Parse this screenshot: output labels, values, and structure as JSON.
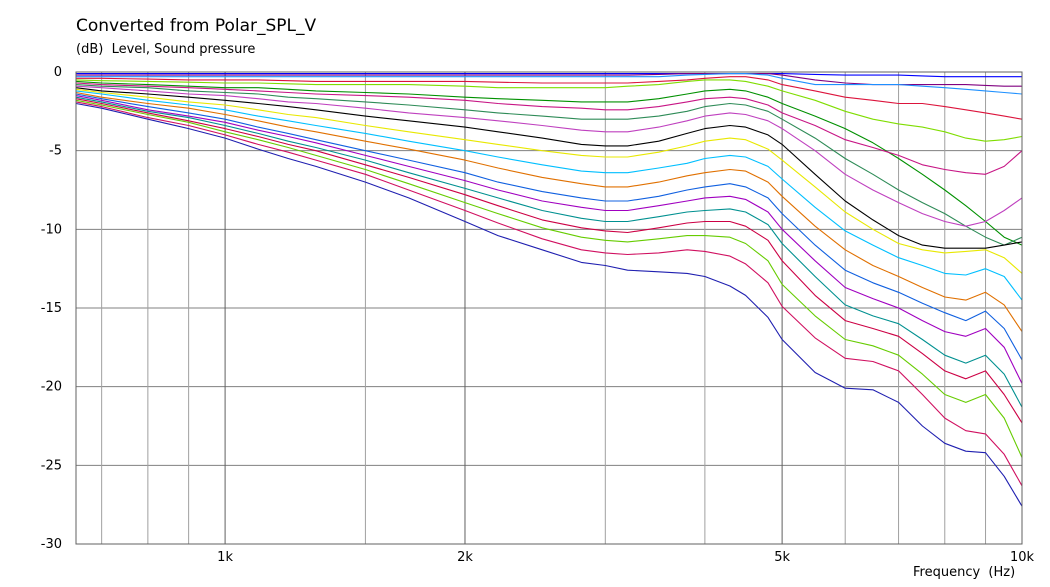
{
  "chart_data": {
    "type": "line",
    "title": "Converted from Polar_SPL_V",
    "ylabel": "(dB)  Level, Sound pressure",
    "xlabel": "Frequency  (Hz)",
    "x_scale": "log",
    "xlim": [
      650,
      10000
    ],
    "ylim": [
      -30,
      0
    ],
    "grid": true,
    "legend": "none",
    "y_ticks": [
      0,
      -5,
      -10,
      -15,
      -20,
      -25,
      -30
    ],
    "y_tick_labels": [
      "0",
      "-5",
      "-10",
      "-15",
      "-20",
      "-25",
      "-30"
    ],
    "x_ticks": [
      1000,
      2000,
      5000,
      10000
    ],
    "x_tick_labels": [
      "1k",
      "2k",
      "5k",
      "10k"
    ],
    "x_minor_grid": [
      700,
      800,
      900,
      1500,
      3000,
      4000,
      6000,
      7000,
      8000,
      9000
    ],
    "x": [
      650,
      700,
      800,
      900,
      1000,
      1100,
      1200,
      1300,
      1500,
      1700,
      2000,
      2200,
      2500,
      2800,
      3000,
      3200,
      3500,
      3800,
      4000,
      4300,
      4500,
      4800,
      5000,
      5500,
      6000,
      6500,
      7000,
      7500,
      8000,
      8500,
      9000,
      9500,
      10000
    ],
    "series": [
      {
        "color": "#ff8c00",
        "values": [
          0.0,
          0.0,
          0.0,
          0.0,
          0.0,
          0.0,
          0.0,
          0.0,
          0.0,
          0.0,
          0.0,
          0.0,
          0.0,
          0.0,
          0.0,
          0.0,
          0.0,
          0.0,
          0.0,
          0.0,
          0.0,
          0.0,
          0.0,
          0.0,
          0.0,
          0.0,
          0.0,
          0.0,
          0.0,
          0.0,
          0.0,
          0.0,
          0.0
        ]
      },
      {
        "color": "#0000ff",
        "values": [
          -0.1,
          -0.1,
          -0.1,
          -0.1,
          -0.1,
          -0.1,
          -0.1,
          -0.1,
          -0.1,
          -0.1,
          -0.1,
          -0.1,
          -0.1,
          -0.1,
          -0.1,
          -0.1,
          -0.1,
          -0.1,
          -0.1,
          -0.1,
          -0.1,
          -0.1,
          -0.1,
          -0.15,
          -0.2,
          -0.2,
          -0.2,
          -0.25,
          -0.3,
          -0.3,
          -0.3,
          -0.3,
          -0.3
        ]
      },
      {
        "color": "#800080",
        "values": [
          -0.2,
          -0.2,
          -0.2,
          -0.2,
          -0.2,
          -0.2,
          -0.2,
          -0.2,
          -0.2,
          -0.2,
          -0.2,
          -0.2,
          -0.2,
          -0.2,
          -0.2,
          -0.2,
          -0.15,
          -0.1,
          -0.1,
          -0.1,
          -0.1,
          -0.1,
          -0.2,
          -0.5,
          -0.7,
          -0.8,
          -0.8,
          -0.8,
          -0.8,
          -0.8,
          -0.85,
          -0.9,
          -0.9
        ]
      },
      {
        "color": "#1e90ff",
        "values": [
          -0.3,
          -0.3,
          -0.3,
          -0.3,
          -0.3,
          -0.3,
          -0.3,
          -0.3,
          -0.3,
          -0.3,
          -0.3,
          -0.3,
          -0.3,
          -0.3,
          -0.3,
          -0.3,
          -0.3,
          -0.2,
          -0.15,
          -0.1,
          -0.1,
          -0.2,
          -0.4,
          -0.8,
          -0.8,
          -0.8,
          -0.8,
          -0.9,
          -1.0,
          -1.1,
          -1.2,
          -1.3,
          -1.4
        ]
      },
      {
        "color": "#dc143c",
        "values": [
          -0.4,
          -0.4,
          -0.45,
          -0.5,
          -0.5,
          -0.5,
          -0.55,
          -0.6,
          -0.6,
          -0.6,
          -0.6,
          -0.65,
          -0.7,
          -0.7,
          -0.7,
          -0.7,
          -0.6,
          -0.5,
          -0.4,
          -0.3,
          -0.3,
          -0.5,
          -0.8,
          -1.2,
          -1.6,
          -1.8,
          -2.0,
          -2.0,
          -2.2,
          -2.4,
          -2.6,
          -2.8,
          -3.0
        ]
      },
      {
        "color": "#7fdd00",
        "values": [
          -0.5,
          -0.55,
          -0.6,
          -0.65,
          -0.7,
          -0.7,
          -0.75,
          -0.8,
          -0.8,
          -0.8,
          -0.9,
          -1.0,
          -1.0,
          -1.0,
          -1.0,
          -0.9,
          -0.8,
          -0.6,
          -0.5,
          -0.5,
          -0.6,
          -0.9,
          -1.2,
          -1.8,
          -2.5,
          -3.0,
          -3.3,
          -3.5,
          -3.8,
          -4.2,
          -4.4,
          -4.3,
          -4.1
        ]
      },
      {
        "color": "#009000",
        "values": [
          -0.6,
          -0.7,
          -0.8,
          -0.9,
          -1.0,
          -1.0,
          -1.1,
          -1.2,
          -1.3,
          -1.4,
          -1.6,
          -1.7,
          -1.8,
          -1.9,
          -1.9,
          -1.9,
          -1.7,
          -1.4,
          -1.2,
          -1.1,
          -1.2,
          -1.6,
          -2.0,
          -2.8,
          -3.6,
          -4.5,
          -5.5,
          -6.5,
          -7.5,
          -8.5,
          -9.5,
          -10.5,
          -11.0
        ]
      },
      {
        "color": "#c71585",
        "values": [
          -0.7,
          -0.8,
          -0.9,
          -1.0,
          -1.1,
          -1.2,
          -1.3,
          -1.4,
          -1.5,
          -1.6,
          -1.8,
          -2.0,
          -2.2,
          -2.3,
          -2.4,
          -2.4,
          -2.2,
          -1.9,
          -1.7,
          -1.6,
          -1.7,
          -2.1,
          -2.6,
          -3.4,
          -4.3,
          -4.8,
          -5.3,
          -5.9,
          -6.2,
          -6.4,
          -6.5,
          -6.0,
          -5.0
        ]
      },
      {
        "color": "#2e8b57",
        "values": [
          -0.8,
          -0.9,
          -1.0,
          -1.2,
          -1.3,
          -1.4,
          -1.6,
          -1.7,
          -1.9,
          -2.1,
          -2.4,
          -2.6,
          -2.8,
          -3.0,
          -3.0,
          -3.0,
          -2.8,
          -2.5,
          -2.2,
          -2.0,
          -2.1,
          -2.5,
          -3.0,
          -4.2,
          -5.5,
          -6.5,
          -7.5,
          -8.3,
          -9.0,
          -9.8,
          -10.5,
          -11.0,
          -10.5
        ]
      },
      {
        "color": "#bf40bf",
        "values": [
          -0.9,
          -1.0,
          -1.2,
          -1.4,
          -1.5,
          -1.7,
          -1.9,
          -2.0,
          -2.3,
          -2.6,
          -2.9,
          -3.1,
          -3.4,
          -3.7,
          -3.8,
          -3.8,
          -3.5,
          -3.1,
          -2.8,
          -2.6,
          -2.7,
          -3.1,
          -3.6,
          -5.0,
          -6.5,
          -7.5,
          -8.3,
          -9.0,
          -9.5,
          -9.8,
          -9.5,
          -8.8,
          -8.0
        ]
      },
      {
        "color": "#000000",
        "values": [
          -1.0,
          -1.2,
          -1.4,
          -1.6,
          -1.8,
          -2.0,
          -2.2,
          -2.4,
          -2.8,
          -3.1,
          -3.5,
          -3.8,
          -4.2,
          -4.6,
          -4.7,
          -4.7,
          -4.4,
          -3.9,
          -3.6,
          -3.4,
          -3.5,
          -4.0,
          -4.6,
          -6.5,
          -8.2,
          -9.4,
          -10.4,
          -11.0,
          -11.2,
          -11.2,
          -11.2,
          -11.0,
          -10.8
        ]
      },
      {
        "color": "#e8e800",
        "values": [
          -1.1,
          -1.3,
          -1.6,
          -1.9,
          -2.1,
          -2.4,
          -2.7,
          -2.9,
          -3.4,
          -3.8,
          -4.3,
          -4.6,
          -5.0,
          -5.3,
          -5.4,
          -5.4,
          -5.1,
          -4.7,
          -4.4,
          -4.2,
          -4.3,
          -4.9,
          -5.6,
          -7.3,
          -8.9,
          -10.0,
          -10.9,
          -11.3,
          -11.5,
          -11.4,
          -11.3,
          -11.8,
          -12.8
        ]
      },
      {
        "color": "#00bfff",
        "values": [
          -1.2,
          -1.4,
          -1.8,
          -2.1,
          -2.4,
          -2.8,
          -3.1,
          -3.4,
          -3.9,
          -4.4,
          -5.0,
          -5.4,
          -5.9,
          -6.3,
          -6.4,
          -6.4,
          -6.1,
          -5.8,
          -5.5,
          -5.3,
          -5.4,
          -6.0,
          -6.8,
          -8.6,
          -10.1,
          -11.0,
          -11.8,
          -12.3,
          -12.8,
          -12.9,
          -12.5,
          -13.0,
          -14.5
        ]
      },
      {
        "color": "#e07000",
        "values": [
          -1.3,
          -1.6,
          -2.0,
          -2.3,
          -2.7,
          -3.1,
          -3.5,
          -3.8,
          -4.4,
          -4.9,
          -5.6,
          -6.1,
          -6.7,
          -7.1,
          -7.3,
          -7.3,
          -7.0,
          -6.6,
          -6.4,
          -6.2,
          -6.3,
          -7.0,
          -7.9,
          -9.8,
          -11.3,
          -12.3,
          -13.0,
          -13.7,
          -14.3,
          -14.5,
          -14.0,
          -14.8,
          -16.5
        ]
      },
      {
        "color": "#1060e0",
        "values": [
          -1.4,
          -1.7,
          -2.2,
          -2.6,
          -3.0,
          -3.5,
          -3.9,
          -4.3,
          -5.0,
          -5.6,
          -6.4,
          -7.0,
          -7.6,
          -8.0,
          -8.2,
          -8.2,
          -7.9,
          -7.5,
          -7.3,
          -7.1,
          -7.3,
          -8.0,
          -9.0,
          -11.0,
          -12.6,
          -13.4,
          -14.0,
          -14.7,
          -15.3,
          -15.8,
          -15.2,
          -16.3,
          -18.3
        ]
      },
      {
        "color": "#a000c0",
        "values": [
          -1.5,
          -1.8,
          -2.4,
          -2.8,
          -3.2,
          -3.7,
          -4.1,
          -4.5,
          -5.3,
          -6.0,
          -6.9,
          -7.5,
          -8.2,
          -8.6,
          -8.8,
          -8.8,
          -8.5,
          -8.2,
          -8.0,
          -7.9,
          -8.1,
          -8.9,
          -10.0,
          -12.0,
          -13.7,
          -14.4,
          -15.0,
          -15.8,
          -16.5,
          -16.8,
          -16.3,
          -17.5,
          -19.8
        ]
      },
      {
        "color": "#009090",
        "values": [
          -1.6,
          -1.9,
          -2.5,
          -2.9,
          -3.4,
          -3.9,
          -4.4,
          -4.8,
          -5.6,
          -6.4,
          -7.4,
          -8.0,
          -8.8,
          -9.3,
          -9.5,
          -9.5,
          -9.2,
          -8.9,
          -8.8,
          -8.7,
          -8.9,
          -9.7,
          -10.9,
          -13.0,
          -14.8,
          -15.5,
          -16.0,
          -17.0,
          -18.0,
          -18.5,
          -18.0,
          -19.2,
          -21.3
        ]
      },
      {
        "color": "#cc0044",
        "values": [
          -1.7,
          -2.0,
          -2.6,
          -3.1,
          -3.6,
          -4.1,
          -4.6,
          -5.0,
          -5.9,
          -6.7,
          -7.8,
          -8.5,
          -9.4,
          -9.9,
          -10.1,
          -10.2,
          -9.9,
          -9.6,
          -9.5,
          -9.5,
          -9.8,
          -10.7,
          -12.0,
          -14.2,
          -15.8,
          -16.3,
          -16.8,
          -17.9,
          -19.0,
          -19.5,
          -19.0,
          -20.5,
          -22.3
        ]
      },
      {
        "color": "#66cc00",
        "values": [
          -1.8,
          -2.1,
          -2.7,
          -3.2,
          -3.8,
          -4.3,
          -4.8,
          -5.3,
          -6.2,
          -7.1,
          -8.3,
          -9.0,
          -9.9,
          -10.5,
          -10.7,
          -10.8,
          -10.6,
          -10.4,
          -10.4,
          -10.5,
          -10.9,
          -12.0,
          -13.5,
          -15.5,
          -17.0,
          -17.4,
          -18.0,
          -19.2,
          -20.5,
          -21.0,
          -20.5,
          -22.0,
          -24.5
        ]
      },
      {
        "color": "#d01060",
        "values": [
          -1.9,
          -2.2,
          -2.9,
          -3.4,
          -4.0,
          -4.6,
          -5.1,
          -5.6,
          -6.5,
          -7.5,
          -8.8,
          -9.6,
          -10.6,
          -11.3,
          -11.5,
          -11.6,
          -11.5,
          -11.3,
          -11.4,
          -11.7,
          -12.2,
          -13.4,
          -14.9,
          -16.9,
          -18.2,
          -18.4,
          -19.0,
          -20.5,
          -22.0,
          -22.8,
          -23.0,
          -24.3,
          -26.3
        ]
      },
      {
        "color": "#1f1fb0",
        "values": [
          -2.0,
          -2.3,
          -3.0,
          -3.6,
          -4.2,
          -4.9,
          -5.5,
          -6.0,
          -7.0,
          -8.0,
          -9.5,
          -10.4,
          -11.3,
          -12.1,
          -12.3,
          -12.6,
          -12.7,
          -12.8,
          -13.0,
          -13.6,
          -14.2,
          -15.6,
          -17.0,
          -19.1,
          -20.1,
          -20.2,
          -21.0,
          -22.5,
          -23.6,
          -24.1,
          -24.2,
          -25.7,
          -27.6
        ]
      }
    ]
  }
}
